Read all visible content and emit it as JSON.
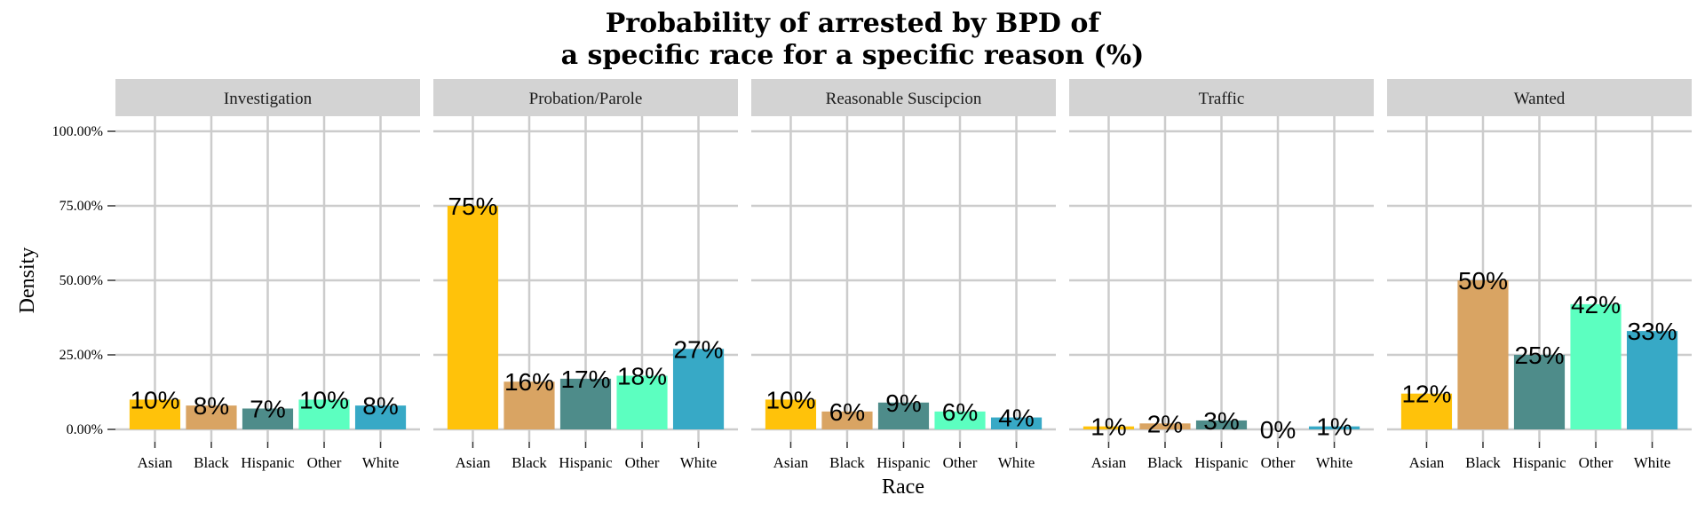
{
  "chart_data": {
    "type": "bar",
    "title_line1": "Probability of arrested by BPD of",
    "title_line2": "a specific race for a specific reason (%)",
    "xlabel": "Race",
    "ylabel": "Density",
    "ylim": [
      0,
      100
    ],
    "y_ticks": [
      0,
      25,
      50,
      75,
      100
    ],
    "y_tick_labels": [
      "0.00%",
      "25.00%",
      "50.00%",
      "75.00%",
      "100.00%"
    ],
    "categories": [
      "Asian",
      "Black",
      "Hispanic",
      "Other",
      "White"
    ],
    "colors": [
      "#FFC20A",
      "#D9A463",
      "#4E8C8A",
      "#5CFFC0",
      "#37A9C6"
    ],
    "grid": true,
    "legend": "none",
    "facets": [
      {
        "name": "Investigation",
        "values": [
          10,
          8,
          7,
          10,
          8
        ],
        "labels": [
          "10%",
          "8%",
          "7%",
          "10%",
          "8%"
        ]
      },
      {
        "name": "Probation/Parole",
        "values": [
          75,
          16,
          17,
          18,
          27
        ],
        "labels": [
          "75%",
          "16%",
          "17%",
          "18%",
          "27%"
        ]
      },
      {
        "name": "Reasonable Suscipcion",
        "values": [
          10,
          6,
          9,
          6,
          4
        ],
        "labels": [
          "10%",
          "6%",
          "9%",
          "6%",
          "4%"
        ]
      },
      {
        "name": "Traffic",
        "values": [
          1,
          2,
          3,
          0,
          1
        ],
        "labels": [
          "1%",
          "2%",
          "3%",
          "0%",
          "1%"
        ]
      },
      {
        "name": "Wanted",
        "values": [
          12,
          50,
          25,
          42,
          33
        ],
        "labels": [
          "12%",
          "50%",
          "25%",
          "42%",
          "33%"
        ]
      }
    ]
  }
}
